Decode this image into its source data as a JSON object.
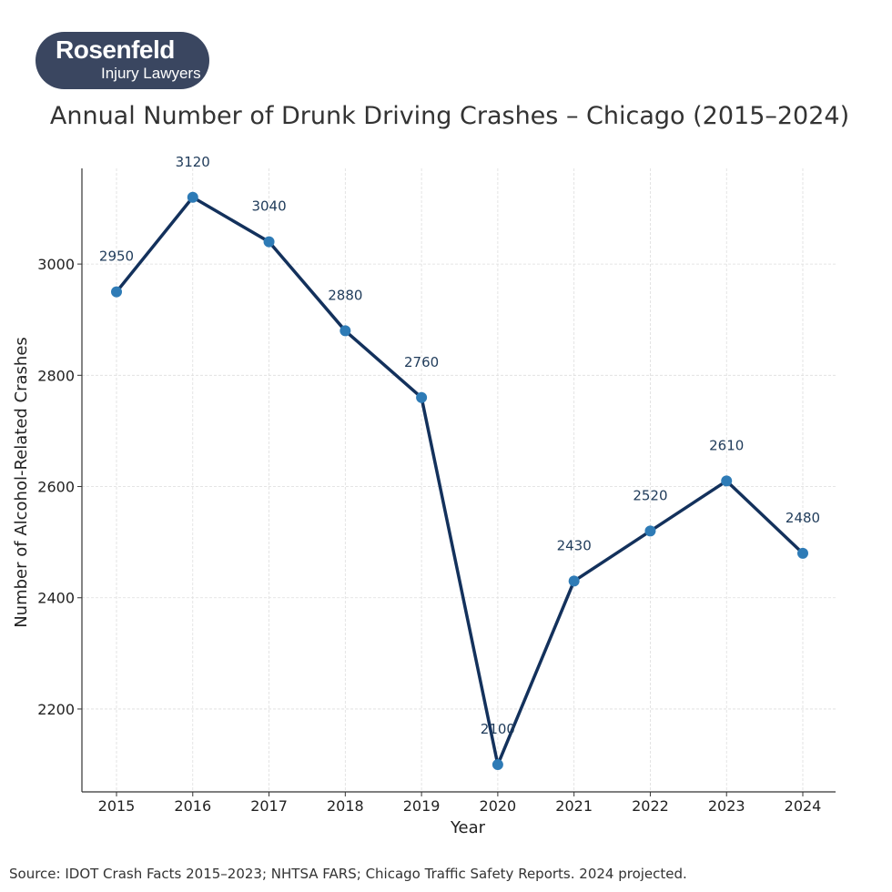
{
  "logo": {
    "line1": "Rosenfeld",
    "line2": "Injury Lawyers"
  },
  "source": "Source: IDOT Crash Facts 2015–2023; NHTSA FARS; Chicago Traffic Safety Reports. 2024 projected.",
  "colors": {
    "line": "#13315c",
    "marker": "#2e7bb6",
    "label": "#1f3b5a",
    "logo_bg": "#3a4660"
  },
  "chart_data": {
    "type": "line",
    "title": "Annual Number of Drunk Driving Crashes – Chicago (2015–2024)",
    "xlabel": "Year",
    "ylabel": "Number of Alcohol-Related Crashes",
    "x": [
      2015,
      2016,
      2017,
      2018,
      2019,
      2020,
      2021,
      2022,
      2023,
      2024
    ],
    "values": [
      2950,
      3120,
      3040,
      2880,
      2760,
      2100,
      2430,
      2520,
      2610,
      2480
    ],
    "yticks": [
      2200,
      2400,
      2600,
      2800,
      3000
    ],
    "ylim": [
      2051,
      3172
    ],
    "grid": true,
    "data_labels": true
  }
}
